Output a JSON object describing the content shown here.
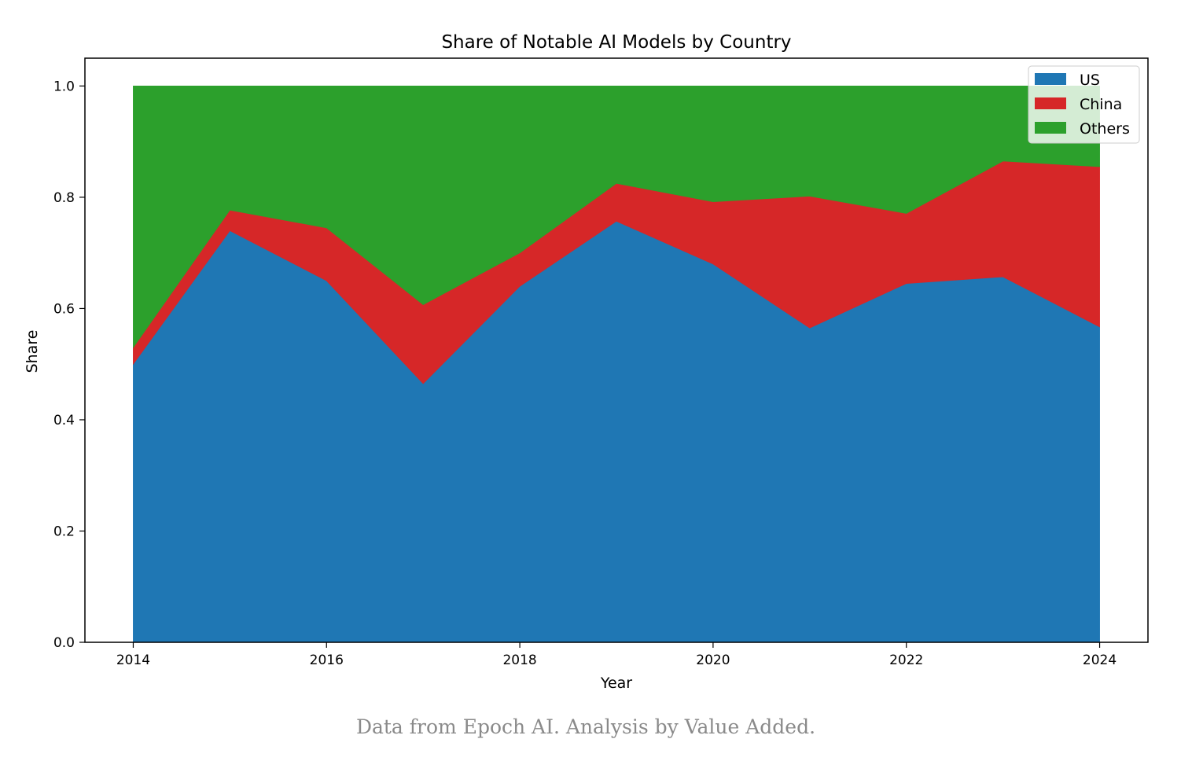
{
  "chart_data": {
    "type": "area",
    "stacked": true,
    "title": "Share of Notable AI Models by Country",
    "xlabel": "Year",
    "ylabel": "Share",
    "xlim": [
      2013.5,
      2024.5
    ],
    "ylim": [
      0,
      1.05
    ],
    "x": [
      2014,
      2015,
      2016,
      2017,
      2018,
      2019,
      2020,
      2021,
      2022,
      2023,
      2024
    ],
    "xticks": [
      "2014",
      "2016",
      "2018",
      "2020",
      "2022",
      "2024"
    ],
    "yticks": [
      "0.0",
      "0.2",
      "0.4",
      "0.6",
      "0.8",
      "1.0"
    ],
    "series": [
      {
        "name": "US",
        "color": "#1f77b4",
        "values": [
          0.5,
          0.74,
          0.65,
          0.465,
          0.64,
          0.757,
          0.68,
          0.565,
          0.645,
          0.657,
          0.567
        ]
      },
      {
        "name": "China",
        "color": "#d62728",
        "values": [
          0.03,
          0.037,
          0.095,
          0.142,
          0.06,
          0.068,
          0.112,
          0.237,
          0.126,
          0.208,
          0.288
        ]
      },
      {
        "name": "Others",
        "color": "#2ca02c",
        "values": [
          0.47,
          0.223,
          0.255,
          0.393,
          0.3,
          0.175,
          0.208,
          0.198,
          0.229,
          0.135,
          0.145
        ]
      }
    ],
    "grid": false,
    "legend_position": "top-right"
  },
  "caption": "Data from Epoch AI. Analysis by Value Added."
}
